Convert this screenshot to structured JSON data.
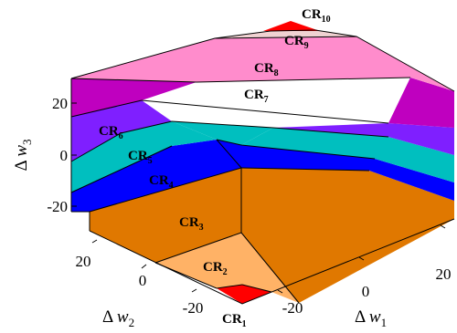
{
  "axes": {
    "w1": {
      "label_symbol": "Δ",
      "label_var": "w",
      "label_sub": "1",
      "ticks": [
        "-20",
        "0",
        "20"
      ]
    },
    "w2": {
      "label_symbol": "Δ",
      "label_var": "w",
      "label_sub": "2",
      "ticks": [
        "20",
        "0",
        "-20"
      ]
    },
    "w3": {
      "label_symbol": "Δ",
      "label_var": "w",
      "label_sub": "3",
      "ticks": [
        "20",
        "0",
        "-20"
      ]
    }
  },
  "regions": [
    {
      "base": "CR",
      "sub": "1",
      "color": "#ff0000"
    },
    {
      "base": "CR",
      "sub": "2",
      "color": "#ffb266"
    },
    {
      "base": "CR",
      "sub": "3",
      "color": "#e07800"
    },
    {
      "base": "CR",
      "sub": "4",
      "color": "#0000ff"
    },
    {
      "base": "CR",
      "sub": "5",
      "color": "#00bfbf"
    },
    {
      "base": "CR",
      "sub": "6",
      "color": "#7f1fff"
    },
    {
      "base": "CR",
      "sub": "7",
      "color": "#bf00bf"
    },
    {
      "base": "CR",
      "sub": "8",
      "color": "#ff8ccc"
    },
    {
      "base": "CR",
      "sub": "9",
      "color": "#f0d2d2"
    },
    {
      "base": "CR",
      "sub": "10",
      "color": "#ff0000"
    }
  ]
}
